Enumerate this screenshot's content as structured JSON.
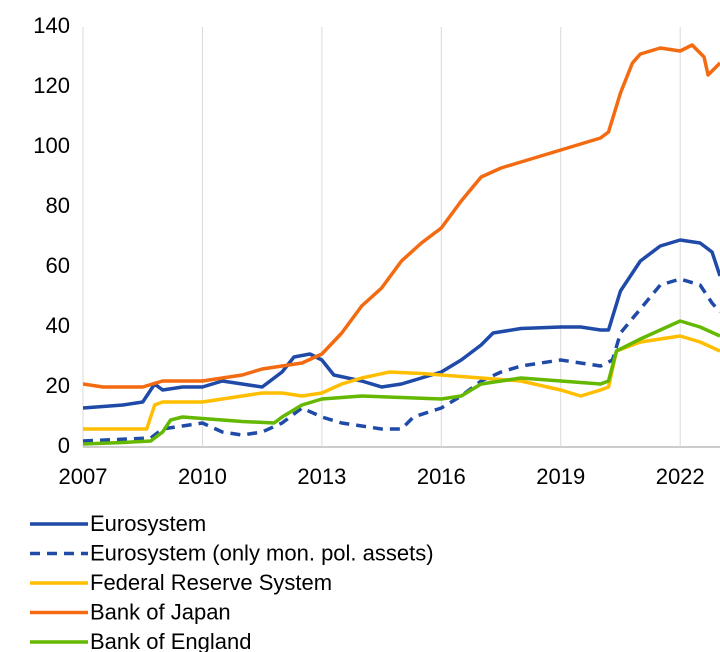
{
  "chart_data": {
    "type": "line",
    "xlim": [
      2007,
      2023
    ],
    "xticks": [
      2007,
      2010,
      2013,
      2016,
      2019,
      2022
    ],
    "ylim": [
      0,
      140
    ],
    "yticks": [
      0,
      20,
      40,
      60,
      80,
      100,
      120,
      140
    ],
    "grid": true,
    "legend": "bottom",
    "series": [
      {
        "name": "Eurosystem",
        "color": "#1f4aa8",
        "dashed": false,
        "x": [
          2007,
          2008,
          2008.5,
          2008.8,
          2009,
          2009.5,
          2010,
          2010.5,
          2011,
          2011.5,
          2012,
          2012.3,
          2012.7,
          2013,
          2013.3,
          2014,
          2014.5,
          2015,
          2015.5,
          2016,
          2016.5,
          2017,
          2017.3,
          2018,
          2019,
          2019.5,
          2020,
          2020.2,
          2020.5,
          2021,
          2021.5,
          2022,
          2022.5,
          2022.8,
          2023
        ],
        "values": [
          13,
          14,
          15,
          21,
          19,
          20,
          20,
          22,
          21,
          20,
          25,
          30,
          31,
          29,
          24,
          22,
          20,
          21,
          23,
          25,
          29,
          34,
          38,
          39.5,
          40,
          40,
          39,
          39,
          52,
          62,
          67,
          69,
          68,
          65,
          57
        ]
      },
      {
        "name": "Eurosystem (only mon. pol. assets)",
        "color": "#1f4aa8",
        "dashed": true,
        "x": [
          2007,
          2008.7,
          2009,
          2009.5,
          2010,
          2010.5,
          2011,
          2011.5,
          2012,
          2012.5,
          2013,
          2013.5,
          2014,
          2014.5,
          2015,
          2015.3,
          2016,
          2016.5,
          2017,
          2017.5,
          2018,
          2019,
          2020,
          2020.3,
          2020.5,
          2021,
          2021.5,
          2022,
          2022.5,
          2022.8,
          2023
        ],
        "values": [
          2,
          3,
          6,
          7,
          8,
          5,
          4,
          5,
          8,
          13,
          10,
          8,
          7,
          6,
          6,
          10,
          13,
          17,
          22,
          25,
          27,
          29,
          27,
          29,
          38,
          46,
          54,
          56,
          54,
          48,
          45
        ]
      },
      {
        "name": "Federal Reserve System",
        "color": "#ffbe00",
        "dashed": false,
        "x": [
          2007,
          2008.6,
          2008.8,
          2009,
          2010,
          2011,
          2011.5,
          2012,
          2012.5,
          2013,
          2013.5,
          2014,
          2014.7,
          2015.5,
          2016,
          2017,
          2018,
          2019,
          2019.5,
          2020,
          2020.2,
          2020.4,
          2021,
          2022,
          2022.5,
          2023
        ],
        "values": [
          6,
          6,
          14,
          15,
          15,
          17,
          18,
          18,
          17,
          18,
          21,
          23,
          25,
          24.5,
          24,
          23,
          22,
          19,
          17,
          19,
          20,
          32,
          35,
          37,
          35,
          32
        ]
      },
      {
        "name": "Bank of Japan",
        "color": "#f46a10",
        "dashed": false,
        "x": [
          2007,
          2007.5,
          2008,
          2008.5,
          2009,
          2010,
          2011,
          2011.5,
          2012,
          2012.5,
          2013,
          2013.5,
          2014,
          2014.5,
          2015,
          2015.5,
          2016,
          2016.5,
          2017,
          2017.5,
          2018,
          2018.5,
          2019,
          2019.5,
          2020,
          2020.2,
          2020.5,
          2020.8,
          2021,
          2021.5,
          2022,
          2022.3,
          2022.6,
          2022.7,
          2023
        ],
        "values": [
          21,
          20,
          20,
          20,
          22,
          22,
          24,
          26,
          27,
          28,
          31,
          38,
          47,
          53,
          62,
          68,
          73,
          82,
          90,
          93,
          95,
          97,
          99,
          101,
          103,
          105,
          118,
          128,
          131,
          133,
          132,
          134,
          130,
          124,
          128
        ]
      },
      {
        "name": "Bank of England",
        "color": "#65b800",
        "dashed": false,
        "x": [
          2007,
          2008,
          2008.7,
          2009,
          2009.2,
          2009.5,
          2010,
          2011,
          2011.8,
          2012,
          2012.5,
          2013,
          2014,
          2015,
          2016,
          2016.5,
          2017,
          2017.5,
          2018,
          2019,
          2020,
          2020.2,
          2020.4,
          2021,
          2021.5,
          2022,
          2022.5,
          2023
        ],
        "values": [
          1,
          1.5,
          2,
          5,
          9,
          10,
          9.5,
          8.5,
          8,
          10,
          14,
          16,
          17,
          16.5,
          16,
          17,
          21,
          22,
          23,
          22,
          21,
          22,
          32,
          36,
          39,
          42,
          40,
          37
        ]
      }
    ]
  }
}
